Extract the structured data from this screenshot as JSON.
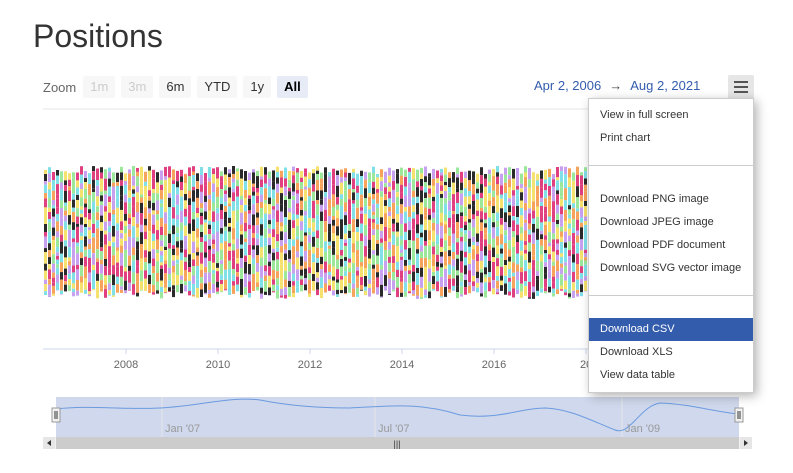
{
  "page": {
    "title": "Positions"
  },
  "range_selector": {
    "zoom_label": "Zoom",
    "buttons": [
      {
        "label": "1m",
        "state": "disabled"
      },
      {
        "label": "3m",
        "state": "disabled"
      },
      {
        "label": "6m",
        "state": "normal"
      },
      {
        "label": "YTD",
        "state": "normal"
      },
      {
        "label": "1y",
        "state": "normal"
      },
      {
        "label": "All",
        "state": "active"
      }
    ],
    "from_date": "Apr 2, 2006",
    "arrow": "→",
    "to_date": "Aug 2, 2021"
  },
  "context_menu": {
    "icon": "hamburger-menu-icon",
    "items": [
      {
        "label": "View in full screen"
      },
      {
        "label": "Print chart"
      },
      {
        "label": "Download PNG image"
      },
      {
        "label": "Download JPEG image"
      },
      {
        "label": "Download PDF document"
      },
      {
        "label": "Download SVG vector image"
      },
      {
        "label": "Download CSV",
        "highlighted": true
      },
      {
        "label": "Download XLS"
      },
      {
        "label": "View data table"
      }
    ],
    "highlight_color": "#335cad"
  },
  "chart_data": {
    "type": "bar",
    "x_axis_labels": [
      "2008",
      "2010",
      "2012",
      "2014",
      "2016",
      "20"
    ],
    "series_colors": [
      "#e0407f",
      "#f5e16e",
      "#7fe0e8",
      "#2a2a2a",
      "#9be89b",
      "#f7a35c",
      "#c8a0f0"
    ],
    "stacked": true,
    "grid": false
  },
  "navigator": {
    "labels": [
      "Jan '07",
      "Jul '07",
      "Jan '09"
    ],
    "scrollbar_grip": "|||",
    "mask_color": "#ccd6eb",
    "line_color": "#6c9be0"
  }
}
